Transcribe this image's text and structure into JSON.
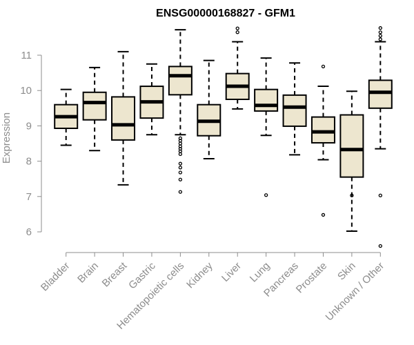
{
  "chart_data": {
    "type": "boxplot",
    "title": "ENSG00000168827 - GFM1",
    "xlabel": "",
    "ylabel": "Expression",
    "ylim": [
      5.5,
      11.9
    ],
    "yticks": [
      6,
      7,
      8,
      9,
      10,
      11
    ],
    "grid": false,
    "colors": {
      "box_fill": "#ede6cf",
      "stroke": "#000000",
      "axis": "#8c8c8c"
    },
    "categories": [
      "Bladder",
      "Brain",
      "Breast",
      "Gastric",
      "Hematopoietic cells",
      "Kidney",
      "Liver",
      "Lung",
      "Pancreas",
      "Prostate",
      "Skin",
      "Unknown / Other"
    ],
    "boxes": [
      {
        "whisker_low": 8.45,
        "q1": 8.93,
        "median": 9.26,
        "q3": 9.6,
        "whisker_high": 10.03,
        "outliers": []
      },
      {
        "whisker_low": 8.3,
        "q1": 9.17,
        "median": 9.66,
        "q3": 9.95,
        "whisker_high": 10.65,
        "outliers": []
      },
      {
        "whisker_low": 7.33,
        "q1": 8.6,
        "median": 9.03,
        "q3": 9.82,
        "whisker_high": 11.1,
        "outliers": []
      },
      {
        "whisker_low": 8.75,
        "q1": 9.22,
        "median": 9.68,
        "q3": 10.12,
        "whisker_high": 10.75,
        "outliers": []
      },
      {
        "whisker_low": 8.75,
        "q1": 9.88,
        "median": 10.42,
        "q3": 10.68,
        "whisker_high": 11.72,
        "outliers": [
          7.13,
          7.48,
          7.68,
          7.82,
          7.93,
          8.2,
          8.28,
          8.35,
          8.42,
          8.5,
          8.58,
          8.65
        ]
      },
      {
        "whisker_low": 8.07,
        "q1": 8.72,
        "median": 9.13,
        "q3": 9.6,
        "whisker_high": 10.85,
        "outliers": []
      },
      {
        "whisker_low": 9.48,
        "q1": 9.75,
        "median": 10.12,
        "q3": 10.48,
        "whisker_high": 11.38,
        "outliers": [
          11.65,
          11.76
        ]
      },
      {
        "whisker_low": 8.73,
        "q1": 9.42,
        "median": 9.58,
        "q3": 10.03,
        "whisker_high": 10.92,
        "outliers": [
          7.04
        ]
      },
      {
        "whisker_low": 8.18,
        "q1": 8.99,
        "median": 9.53,
        "q3": 9.87,
        "whisker_high": 10.78,
        "outliers": []
      },
      {
        "whisker_low": 8.04,
        "q1": 8.52,
        "median": 8.83,
        "q3": 9.25,
        "whisker_high": 10.12,
        "outliers": [
          6.48,
          10.68
        ]
      },
      {
        "whisker_low": 6.02,
        "q1": 7.55,
        "median": 8.33,
        "q3": 9.31,
        "whisker_high": 9.98,
        "outliers": [
          7.03
        ]
      },
      {
        "whisker_low": 8.35,
        "q1": 9.5,
        "median": 9.95,
        "q3": 10.29,
        "whisker_high": 11.38,
        "outliers": [
          5.6,
          7.03,
          11.45,
          11.55,
          11.65,
          11.77
        ]
      }
    ]
  }
}
